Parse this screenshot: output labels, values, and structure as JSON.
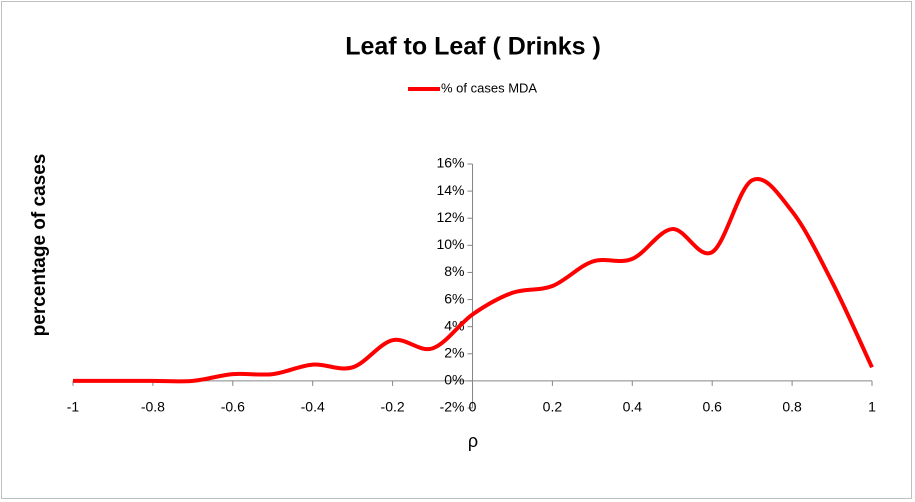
{
  "chart_data": {
    "type": "line",
    "title": "Leaf to Leaf ( Drinks )",
    "x_label": "ρ",
    "y_label": "percentage of cases",
    "x": [
      -1,
      -0.9,
      -0.8,
      -0.7,
      -0.6,
      -0.5,
      -0.4,
      -0.3,
      -0.2,
      -0.1,
      0,
      0.1,
      0.2,
      0.3,
      0.4,
      0.5,
      0.6,
      0.7,
      0.8,
      0.9,
      1
    ],
    "series": [
      {
        "name": "% of cases MDA",
        "color": "#ff0000",
        "values": [
          0,
          0,
          0,
          0,
          0.5,
          0.5,
          1.2,
          1.0,
          3.0,
          2.4,
          4.9,
          6.5,
          7.0,
          8.8,
          9.0,
          11.2,
          9.5,
          14.8,
          12.5,
          7.3,
          1.0
        ]
      }
    ],
    "xlim": [
      -1,
      1
    ],
    "xticks": [
      -1,
      -0.8,
      -0.6,
      -0.4,
      -0.2,
      0,
      0.2,
      0.4,
      0.6,
      0.8,
      1
    ],
    "ylim": [
      -2,
      16
    ],
    "yticks": [
      {
        "value": -2,
        "label": "-2%"
      },
      {
        "value": 0,
        "label": "0%"
      },
      {
        "value": 2,
        "label": "2%"
      },
      {
        "value": 4,
        "label": "4%"
      },
      {
        "value": 6,
        "label": "6%"
      },
      {
        "value": 8,
        "label": "8%"
      },
      {
        "value": 10,
        "label": "10%"
      },
      {
        "value": 12,
        "label": "12%"
      },
      {
        "value": 14,
        "label": "14%"
      },
      {
        "value": 16,
        "label": "16%"
      }
    ],
    "legend": "top",
    "smooth": true
  }
}
